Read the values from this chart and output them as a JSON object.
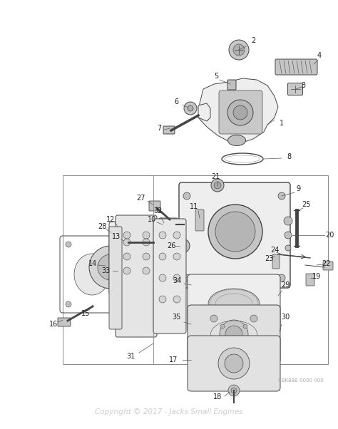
{
  "bg_color": "#ffffff",
  "line_color": "#444444",
  "fill_color": "#d8d8d8",
  "light_fill": "#eeeeee",
  "copyright_text": "Copyright © 2017 - Jacks Small Engines",
  "copyright_color": "#cccccc",
  "rbk_text": "RBK88B 0000 000",
  "rbk_color": "#aaaaaa",
  "figsize": [
    4.74,
    6.02
  ],
  "dpi": 100
}
